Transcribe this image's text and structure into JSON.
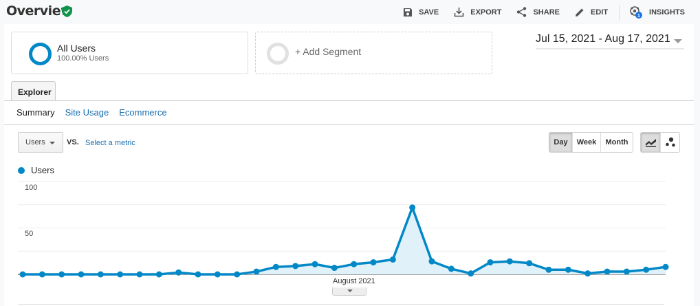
{
  "header": {
    "title": "Overview",
    "verified_icon": "shield-check-icon",
    "actions": [
      {
        "label": "SAVE",
        "icon": "save-icon"
      },
      {
        "label": "EXPORT",
        "icon": "download-icon"
      },
      {
        "label": "SHARE",
        "icon": "share-icon"
      },
      {
        "label": "EDIT",
        "icon": "pencil-icon"
      },
      {
        "label": "INSIGHTS",
        "icon": "insights-icon",
        "badge": "1"
      }
    ]
  },
  "segments": {
    "active": {
      "name": "All Users",
      "sub": "100.00% Users",
      "color": "#0288c7"
    },
    "add_label": "+ Add Segment"
  },
  "date_range": "Jul 15, 2021 - Aug 17, 2021",
  "tabs": {
    "explorer": "Explorer"
  },
  "subtabs": [
    {
      "label": "Summary",
      "active": true
    },
    {
      "label": "Site Usage",
      "active": false
    },
    {
      "label": "Ecommerce",
      "active": false
    }
  ],
  "controls": {
    "metric": "Users",
    "vs": "VS.",
    "select_metric": "Select a metric",
    "granularity": [
      {
        "label": "Day",
        "active": true
      },
      {
        "label": "Week",
        "active": false
      },
      {
        "label": "Month",
        "active": false
      }
    ],
    "chart_types": [
      {
        "icon": "line-chart-icon",
        "active": true
      },
      {
        "icon": "motion-chart-icon",
        "active": false
      }
    ]
  },
  "chart_data": {
    "type": "area",
    "title": "",
    "legend": [
      "Users"
    ],
    "series_color": "#0288c7",
    "x_start": "Jul 15, 2021",
    "x_end": "Aug 17, 2021",
    "x_tick_label": "August 2021",
    "y_ticks": [
      "100",
      "50"
    ],
    "ylim": [
      0,
      100
    ],
    "grid": true,
    "series": [
      {
        "name": "Users",
        "values": [
          0,
          0,
          0,
          0,
          0,
          0,
          0,
          0,
          2,
          0,
          0,
          0,
          3,
          8,
          9,
          11,
          7,
          11,
          13,
          16,
          72,
          14,
          6,
          1,
          13,
          14,
          12,
          5,
          5,
          1,
          3,
          3,
          5,
          8
        ]
      }
    ]
  }
}
